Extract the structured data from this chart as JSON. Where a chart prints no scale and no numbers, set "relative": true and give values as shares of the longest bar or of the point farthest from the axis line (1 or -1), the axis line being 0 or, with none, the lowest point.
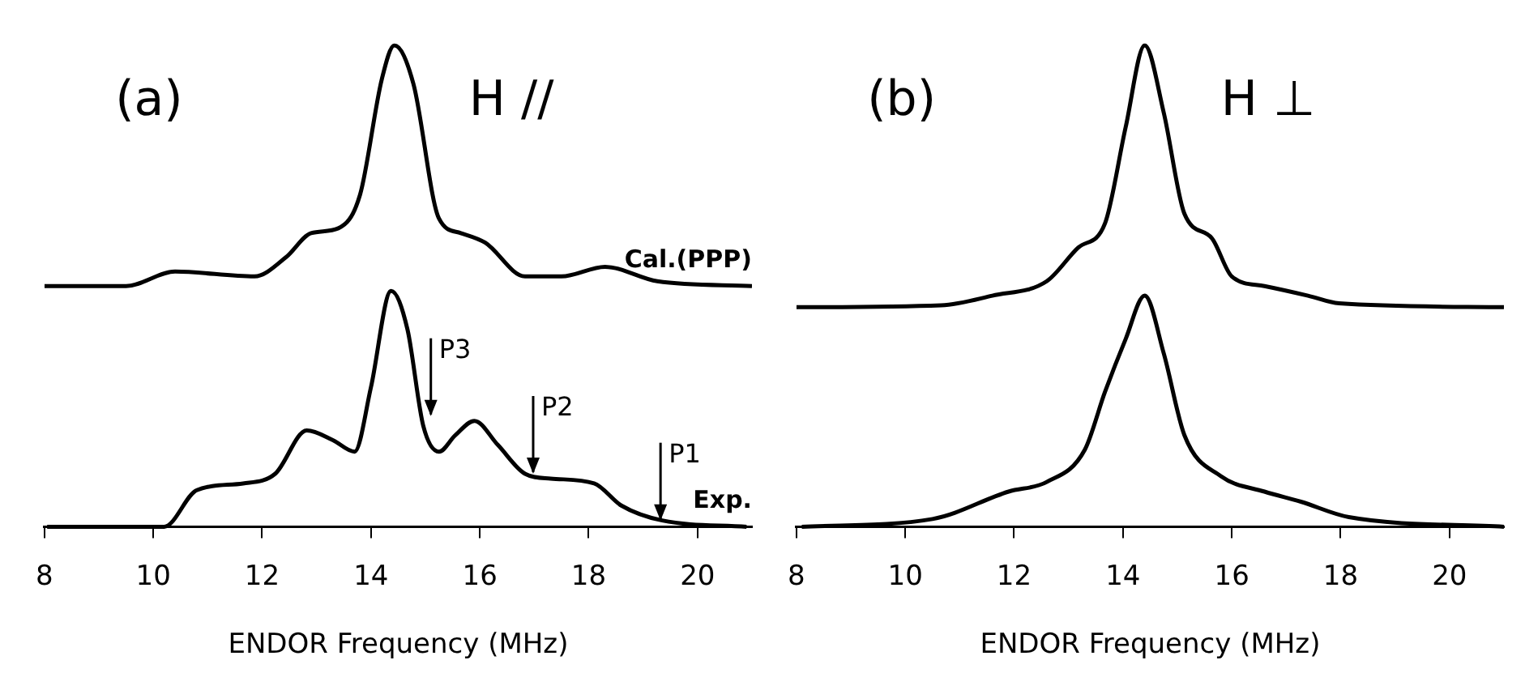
{
  "chart_data": [
    {
      "type": "line",
      "relative": true,
      "xlabel": "ENDOR Frequency (MHz)",
      "xlim": [
        8,
        21
      ],
      "xticks": [
        8,
        10,
        12,
        14,
        16,
        18,
        20
      ],
      "marker": "none",
      "line_style": "solid",
      "series": [
        {
          "name": "Cal.(PPP)",
          "color": "#000000",
          "x": [
            8.0,
            9.5,
            10.4,
            11.86,
            12.44,
            12.9,
            13.4,
            13.8,
            14.2,
            14.43,
            14.78,
            15.25,
            15.65,
            16.1,
            16.83,
            17.5,
            18.3,
            19.26,
            21.0
          ],
          "values": [
            0.5,
            0.5,
            0.53,
            0.52,
            0.56,
            0.61,
            0.62,
            0.69,
            0.93,
            1.0,
            0.92,
            0.64,
            0.61,
            0.59,
            0.52,
            0.52,
            0.54,
            0.51,
            0.5
          ]
        },
        {
          "name": "Exp.",
          "color": "#000000",
          "x": [
            8.05,
            9.0,
            10.2,
            10.8,
            11.65,
            12.24,
            12.82,
            13.3,
            13.7,
            14.0,
            14.37,
            14.67,
            14.96,
            15.25,
            15.55,
            15.9,
            16.33,
            16.83,
            17.3,
            18.1,
            18.6,
            19.35,
            20.9
          ],
          "values": [
            0.0,
            0.0,
            0.0,
            0.076,
            0.09,
            0.11,
            0.2,
            0.18,
            0.156,
            0.29,
            0.49,
            0.41,
            0.21,
            0.156,
            0.19,
            0.22,
            0.17,
            0.11,
            0.1,
            0.09,
            0.044,
            0.013,
            0.0
          ]
        }
      ],
      "annotations": [
        "(a)",
        "H //",
        {
          "text": "P3",
          "x": 15.1,
          "y": 0.23
        },
        {
          "text": "P2",
          "x": 16.98,
          "y": 0.11
        },
        {
          "text": "P1",
          "x": 19.32,
          "y": 0.013
        }
      ]
    },
    {
      "type": "line",
      "relative": true,
      "xlabel": "ENDOR Frequency (MHz)",
      "xlim": [
        8,
        21
      ],
      "xticks": [
        8,
        10,
        12,
        14,
        16,
        18,
        20
      ],
      "marker": "none",
      "line_style": "solid",
      "series": [
        {
          "color": "#000000",
          "x": [
            8.0,
            10.66,
            11.6,
            12.6,
            13.18,
            13.67,
            14.05,
            14.4,
            14.75,
            15.13,
            15.63,
            16.0,
            16.6,
            17.4,
            17.97,
            21.0
          ],
          "values": [
            0.456,
            0.46,
            0.48,
            0.51,
            0.58,
            0.63,
            0.83,
            1.0,
            0.86,
            0.65,
            0.6,
            0.52,
            0.5,
            0.48,
            0.464,
            0.456
          ]
        },
        {
          "color": "#000000",
          "x": [
            8.1,
            10.5,
            11.9,
            12.6,
            13.3,
            13.67,
            14.05,
            14.4,
            14.75,
            15.13,
            15.8,
            16.6,
            17.27,
            18.15,
            21.0
          ],
          "values": [
            0.0,
            0.016,
            0.073,
            0.093,
            0.16,
            0.28,
            0.39,
            0.48,
            0.36,
            0.19,
            0.105,
            0.073,
            0.052,
            0.02,
            0.0
          ]
        }
      ],
      "annotations": [
        "(b)",
        "H ⊥"
      ]
    }
  ]
}
